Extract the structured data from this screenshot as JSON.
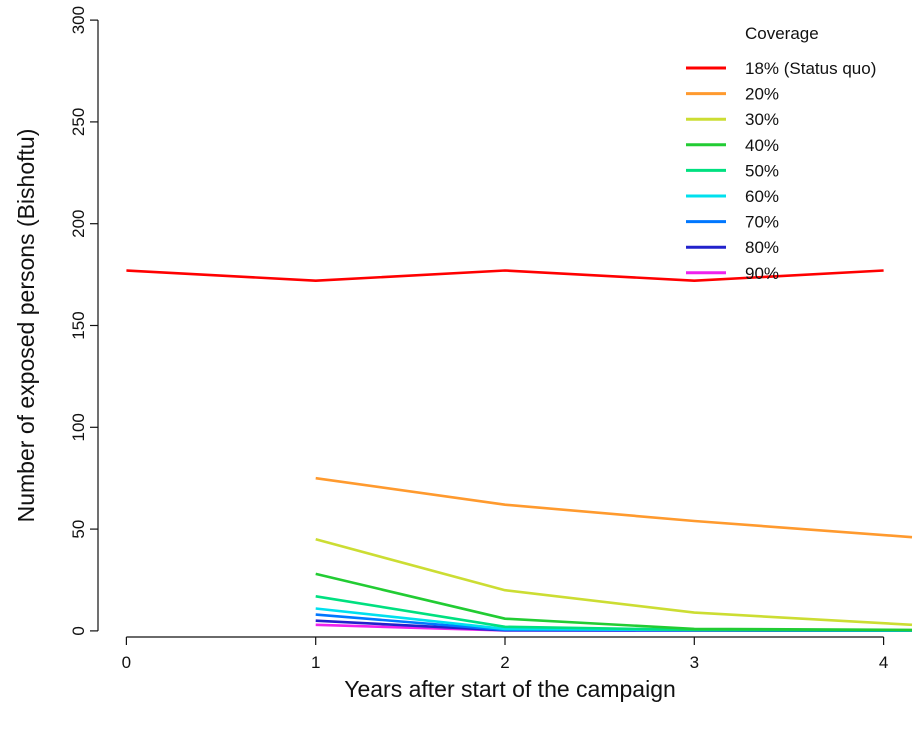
{
  "chart_data": {
    "type": "line",
    "title": "",
    "xlabel": "Years after start of the campaign",
    "ylabel": "Number of exposed persons (Bishoftu)",
    "xlim": [
      -0.15,
      4.15
    ],
    "ylim": [
      -3,
      303
    ],
    "x_ticks": [
      0,
      1,
      2,
      3,
      4
    ],
    "y_ticks": [
      0,
      50,
      100,
      150,
      200,
      250,
      300
    ],
    "grid": false,
    "legend": {
      "title": "Coverage",
      "placement": "top-right"
    },
    "series": [
      {
        "name": "18% (Status quo)",
        "color": "#ff0000",
        "x": [
          0,
          1,
          2,
          3,
          4
        ],
        "y": [
          177,
          172,
          177,
          172,
          177
        ]
      },
      {
        "name": "20%",
        "color": "#ff9a2e",
        "x": [
          1,
          2,
          3,
          4.15
        ],
        "y": [
          75,
          62,
          54,
          46
        ]
      },
      {
        "name": "30%",
        "color": "#ccdd33",
        "x": [
          1,
          2,
          3,
          4.15
        ],
        "y": [
          45,
          20,
          9,
          3
        ]
      },
      {
        "name": "40%",
        "color": "#22cc33",
        "x": [
          1,
          2,
          3,
          4.15
        ],
        "y": [
          28,
          6,
          1,
          0.5
        ]
      },
      {
        "name": "50%",
        "color": "#00e080",
        "x": [
          1,
          2,
          3,
          4.15
        ],
        "y": [
          17,
          2,
          0.5,
          0.3
        ]
      },
      {
        "name": "60%",
        "color": "#00e0ee",
        "x": [
          1,
          2,
          3,
          4.15
        ],
        "y": [
          11,
          1,
          0.4,
          0.2
        ]
      },
      {
        "name": "70%",
        "color": "#0077ff",
        "x": [
          1,
          2,
          3,
          4.15
        ],
        "y": [
          8,
          0.5,
          0.3,
          0.2
        ]
      },
      {
        "name": "80%",
        "color": "#2222cc",
        "x": [
          1,
          2,
          3,
          4.15
        ],
        "y": [
          5,
          0.3,
          0.2,
          0.1
        ]
      },
      {
        "name": "90%",
        "color": "#ee22ee",
        "x": [
          1,
          2,
          3,
          4.15
        ],
        "y": [
          3,
          0.2,
          0.1,
          0.1
        ]
      }
    ]
  }
}
